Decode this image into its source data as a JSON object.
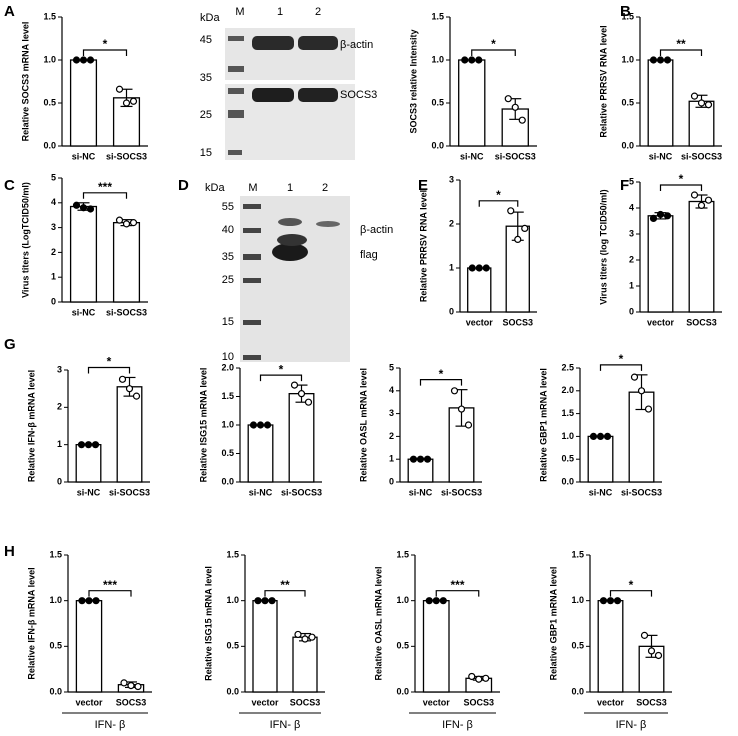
{
  "panels": [
    "A",
    "B",
    "C",
    "D",
    "E",
    "F",
    "G",
    "H"
  ],
  "blots": [
    {
      "unit": "kDa",
      "lanes": [
        "M",
        "1",
        "2"
      ],
      "markers": [
        45,
        35,
        25,
        15
      ],
      "bands": [
        "β-actin",
        "SOCS3"
      ]
    },
    {
      "unit": "kDa",
      "lanes": [
        "M",
        "1",
        "2"
      ],
      "markers": [
        55,
        40,
        35,
        25,
        15,
        10
      ],
      "bands": [
        "β-actin",
        "flag"
      ]
    }
  ],
  "chart_data": [
    {
      "type": "bar",
      "ylabel": "Relative SOCS3 mRNA level",
      "categories": [
        "si-NC",
        "si-SOCS3"
      ],
      "values": [
        1.0,
        0.56
      ],
      "errors": [
        0,
        0.1
      ],
      "points": [
        [
          1,
          1,
          1
        ],
        [
          0.66,
          0.5,
          0.52
        ]
      ],
      "significance": "*",
      "ylim": [
        0,
        1.5
      ],
      "yticks": [
        {
          "value": 0,
          "label": "0.0"
        },
        0.5,
        {
          "value": 1,
          "label": "1.0"
        },
        1.5
      ]
    },
    {
      "type": "bar",
      "ylabel": "SOCS3 relative Intensity",
      "categories": [
        "si-NC",
        "si-SOCS3"
      ],
      "values": [
        1.0,
        0.43
      ],
      "errors": [
        0,
        0.12
      ],
      "points": [
        [
          1,
          1,
          1
        ],
        [
          0.55,
          0.45,
          0.3
        ]
      ],
      "significance": "*",
      "ylim": [
        0,
        1.5
      ],
      "yticks": [
        {
          "value": 0,
          "label": "0.0"
        },
        0.5,
        {
          "value": 1,
          "label": "1.0"
        },
        1.5
      ]
    },
    {
      "type": "bar",
      "ylabel": "Relative PRRSV RNA level",
      "categories": [
        "si-NC",
        "si-SOCS3"
      ],
      "values": [
        1.0,
        0.52
      ],
      "errors": [
        0,
        0.07
      ],
      "points": [
        [
          1,
          1,
          1
        ],
        [
          0.58,
          0.5,
          0.48
        ]
      ],
      "significance": "**",
      "ylim": [
        0,
        1.5
      ],
      "yticks": [
        {
          "value": 0,
          "label": "0.0"
        },
        0.5,
        {
          "value": 1,
          "label": "1.0"
        },
        1.5
      ]
    },
    {
      "type": "bar",
      "ylabel": "Virus titers (LogTCID50/ml)",
      "categories": [
        "si-NC",
        "si-SOCS3"
      ],
      "values": [
        3.85,
        3.2
      ],
      "errors": [
        0.15,
        0.12
      ],
      "points": [
        [
          3.9,
          3.8,
          3.75
        ],
        [
          3.3,
          3.15,
          3.2
        ]
      ],
      "significance": "***",
      "ylim": [
        0,
        5
      ],
      "yticks": [
        0,
        1,
        2,
        3,
        4,
        5
      ]
    },
    {
      "type": "bar",
      "ylabel": "Relative PRRSV RNA level",
      "categories": [
        "vector",
        "SOCS3"
      ],
      "values": [
        1.0,
        1.95
      ],
      "errors": [
        0,
        0.32
      ],
      "points": [
        [
          1,
          1,
          1
        ],
        [
          2.3,
          1.65,
          1.9
        ]
      ],
      "significance": "*",
      "ylim": [
        0,
        3
      ],
      "yticks": [
        0,
        1,
        2,
        3
      ]
    },
    {
      "type": "bar",
      "ylabel": "Virus titers (log TCID50/ml)",
      "categories": [
        "vector",
        "SOCS3"
      ],
      "values": [
        3.7,
        4.25
      ],
      "errors": [
        0.12,
        0.25
      ],
      "points": [
        [
          3.6,
          3.75,
          3.7
        ],
        [
          4.5,
          4.1,
          4.3
        ]
      ],
      "significance": "*",
      "ylim": [
        0,
        5
      ],
      "yticks": [
        0,
        1,
        2,
        3,
        4,
        5
      ]
    },
    {
      "type": "bar",
      "ylabel": "Relative IFN-β mRNA level",
      "categories": [
        "si-NC",
        "si-SOCS3"
      ],
      "values": [
        1.0,
        2.55
      ],
      "errors": [
        0,
        0.25
      ],
      "points": [
        [
          1,
          1,
          1
        ],
        [
          2.75,
          2.5,
          2.3
        ]
      ],
      "significance": "*",
      "ylim": [
        0,
        3
      ],
      "yticks": [
        0,
        1,
        2,
        3
      ]
    },
    {
      "type": "bar",
      "ylabel": "Relative ISG15 mRNA level",
      "categories": [
        "si-NC",
        "si-SOCS3"
      ],
      "values": [
        1.0,
        1.55
      ],
      "errors": [
        0,
        0.15
      ],
      "points": [
        [
          1,
          1,
          1
        ],
        [
          1.7,
          1.55,
          1.4
        ]
      ],
      "significance": "*",
      "ylim": [
        0,
        2
      ],
      "yticks": [
        {
          "value": 0,
          "label": "0.0"
        },
        0.5,
        {
          "value": 1,
          "label": "1.0"
        },
        1.5,
        {
          "value": 2,
          "label": "2.0"
        }
      ]
    },
    {
      "type": "bar",
      "ylabel": "Relative OASL mRNA level",
      "categories": [
        "si-NC",
        "si-SOCS3"
      ],
      "values": [
        1.0,
        3.25
      ],
      "errors": [
        0,
        0.8
      ],
      "points": [
        [
          1,
          1,
          1
        ],
        [
          4.0,
          3.2,
          2.5
        ]
      ],
      "significance": "*",
      "ylim": [
        0,
        5
      ],
      "yticks": [
        0,
        1,
        2,
        3,
        4,
        5
      ]
    },
    {
      "type": "bar",
      "ylabel": "Relative GBP1 mRNA level",
      "categories": [
        "si-NC",
        "si-SOCS3"
      ],
      "values": [
        1.0,
        1.97
      ],
      "errors": [
        0,
        0.38
      ],
      "points": [
        [
          1,
          1,
          1
        ],
        [
          2.3,
          2.0,
          1.6
        ]
      ],
      "significance": "*",
      "ylim": [
        0,
        2.5
      ],
      "yticks": [
        {
          "value": 0,
          "label": "0.0"
        },
        0.5,
        {
          "value": 1,
          "label": "1.0"
        },
        1.5,
        {
          "value": 2,
          "label": "2.0"
        },
        2.5
      ]
    },
    {
      "type": "bar",
      "ylabel": "Relative IFN-β mRNA level",
      "xlabel": "IFN- β",
      "categories": [
        "vector",
        "SOCS3"
      ],
      "values": [
        1.0,
        0.08
      ],
      "errors": [
        0,
        0.03
      ],
      "points": [
        [
          1,
          1,
          1
        ],
        [
          0.1,
          0.07,
          0.06
        ]
      ],
      "significance": "***",
      "ylim": [
        0,
        1.5
      ],
      "yticks": [
        {
          "value": 0,
          "label": "0.0"
        },
        0.5,
        {
          "value": 1,
          "label": "1.0"
        },
        1.5
      ]
    },
    {
      "type": "bar",
      "ylabel": "Relative ISG15 mRNA level",
      "xlabel": "IFN- β",
      "categories": [
        "vector",
        "SOCS3"
      ],
      "values": [
        1.0,
        0.6
      ],
      "errors": [
        0,
        0.04
      ],
      "points": [
        [
          1,
          1,
          1
        ],
        [
          0.63,
          0.58,
          0.6
        ]
      ],
      "significance": "**",
      "ylim": [
        0,
        1.5
      ],
      "yticks": [
        {
          "value": 0,
          "label": "0.0"
        },
        0.5,
        {
          "value": 1,
          "label": "1.0"
        },
        1.5
      ]
    },
    {
      "type": "bar",
      "ylabel": "Relative OASL mRNA level",
      "xlabel": "IFN- β",
      "categories": [
        "vector",
        "SOCS3"
      ],
      "values": [
        1.0,
        0.15
      ],
      "errors": [
        0,
        0.02
      ],
      "points": [
        [
          1,
          1,
          1
        ],
        [
          0.17,
          0.14,
          0.15
        ]
      ],
      "significance": "***",
      "ylim": [
        0,
        1.5
      ],
      "yticks": [
        {
          "value": 0,
          "label": "0.0"
        },
        0.5,
        {
          "value": 1,
          "label": "1.0"
        },
        1.5
      ]
    },
    {
      "type": "bar",
      "ylabel": "Relative GBP1 mRNA level",
      "xlabel": "IFN- β",
      "categories": [
        "vector",
        "SOCS3"
      ],
      "values": [
        1.0,
        0.5
      ],
      "errors": [
        0,
        0.12
      ],
      "points": [
        [
          1,
          1,
          1
        ],
        [
          0.62,
          0.45,
          0.4
        ]
      ],
      "significance": "*",
      "ylim": [
        0,
        1.5
      ],
      "yticks": [
        {
          "value": 0,
          "label": "0.0"
        },
        0.5,
        {
          "value": 1,
          "label": "1.0"
        },
        1.5
      ]
    }
  ]
}
